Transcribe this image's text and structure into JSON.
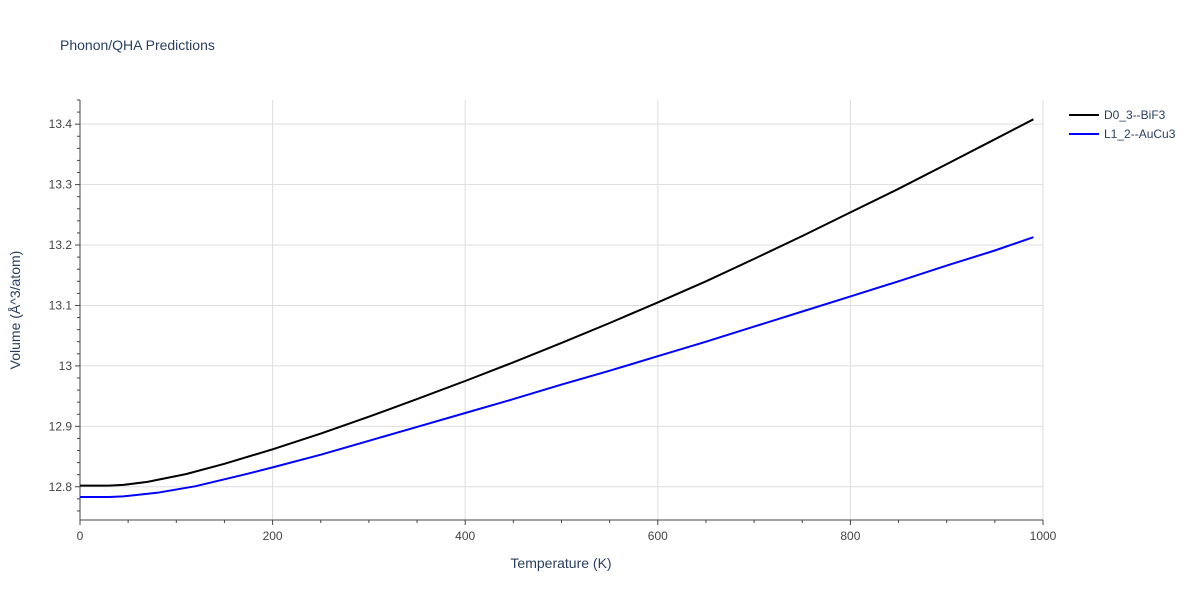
{
  "chart_data": {
    "type": "line",
    "title": "Phonon/QHA Predictions",
    "xlabel": "Temperature (K)",
    "ylabel": "Volume (Å^3/atom)",
    "xlim": [
      0,
      1000
    ],
    "ylim": [
      12.745,
      13.44
    ],
    "x_ticks": [
      0,
      200,
      400,
      600,
      800,
      1000
    ],
    "x_tick_labels": [
      "0",
      "200",
      "400",
      "600",
      "800",
      "1000"
    ],
    "y_ticks": [
      12.8,
      12.9,
      13.0,
      13.1,
      13.2,
      13.3,
      13.4
    ],
    "y_tick_labels": [
      "12.8",
      "12.9",
      "13",
      "13.1",
      "13.2",
      "13.3",
      "13.4"
    ],
    "grid": true,
    "legend_position": "top-right",
    "series": [
      {
        "name": "D0_3--BiF3",
        "color": "#000000",
        "x": [
          0,
          30,
          45,
          70,
          110,
          150,
          200,
          250,
          300,
          350,
          400,
          450,
          500,
          550,
          600,
          650,
          700,
          750,
          800,
          850,
          900,
          950,
          990
        ],
        "y": [
          12.802,
          12.802,
          12.803,
          12.808,
          12.821,
          12.838,
          12.862,
          12.888,
          12.916,
          12.945,
          12.975,
          13.006,
          13.038,
          13.071,
          13.105,
          13.14,
          13.177,
          13.215,
          13.254,
          13.293,
          13.334,
          13.375,
          13.408
        ]
      },
      {
        "name": "L1_2--AuCu3",
        "color": "#0000ff",
        "x": [
          0,
          30,
          45,
          80,
          120,
          170,
          200,
          250,
          300,
          350,
          400,
          450,
          500,
          550,
          600,
          650,
          700,
          750,
          800,
          850,
          900,
          950,
          990
        ],
        "y": [
          12.783,
          12.783,
          12.784,
          12.79,
          12.801,
          12.82,
          12.832,
          12.853,
          12.876,
          12.899,
          12.922,
          12.945,
          12.969,
          12.992,
          13.016,
          13.04,
          13.065,
          13.09,
          13.115,
          13.14,
          13.166,
          13.191,
          13.213
        ]
      }
    ]
  }
}
